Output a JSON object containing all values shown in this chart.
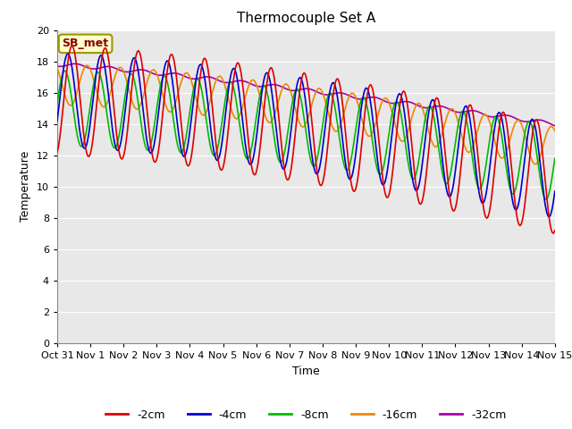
{
  "title": "Thermocouple Set A",
  "xlabel": "Time",
  "ylabel": "Temperature",
  "xlim": [
    0,
    15
  ],
  "ylim": [
    0,
    20
  ],
  "yticks": [
    0,
    2,
    4,
    6,
    8,
    10,
    12,
    14,
    16,
    18,
    20
  ],
  "xtick_labels": [
    "Oct 31",
    "Nov 1",
    "Nov 2",
    "Nov 3",
    "Nov 4",
    "Nov 5",
    "Nov 6",
    "Nov 7",
    "Nov 8",
    "Nov 9",
    "Nov 10",
    "Nov 11",
    "Nov 12",
    "Nov 13",
    "Nov 14",
    "Nov 15"
  ],
  "xtick_positions": [
    0,
    1,
    2,
    3,
    4,
    5,
    6,
    7,
    8,
    9,
    10,
    11,
    12,
    13,
    14,
    15
  ],
  "annotation_text": "SB_met",
  "colors": {
    "-2cm": "#dd0000",
    "-4cm": "#0000cc",
    "-8cm": "#00bb00",
    "-16cm": "#ee8800",
    "-32cm": "#aa00aa"
  },
  "fig_facecolor": "#ffffff",
  "plot_facecolor": "#e8e8e8",
  "grid_color": "#ffffff",
  "title_fontsize": 11,
  "label_fontsize": 9,
  "tick_fontsize": 8,
  "legend_fontsize": 9
}
